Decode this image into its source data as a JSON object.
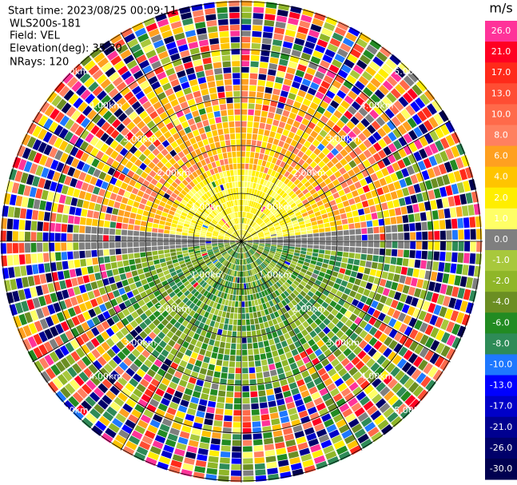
{
  "info": {
    "start_time": "Start time: 2023/08/25 00:09:11",
    "site": "WLS200s-181",
    "field": "Field: VEL",
    "elevation": "Elevation(deg): 35.30",
    "nrays": "NRays: 120"
  },
  "rings": [
    "1.00km",
    "2.00km",
    "3.00km",
    "4.00km",
    "5.00km"
  ],
  "colorbar": {
    "unit": "m/s",
    "ticks": [
      {
        "label": "26.0",
        "color": "#ff3399"
      },
      {
        "label": "21.0",
        "color": "#ff0022"
      },
      {
        "label": "17.0",
        "color": "#ff2a1a"
      },
      {
        "label": "13.0",
        "color": "#ff4d33"
      },
      {
        "label": "10.0",
        "color": "#ff6a4a"
      },
      {
        "label": "8.0",
        "color": "#ff8060"
      },
      {
        "label": "6.0",
        "color": "#ffa020"
      },
      {
        "label": "4.0",
        "color": "#ffc400"
      },
      {
        "label": "2.0",
        "color": "#ffee00"
      },
      {
        "label": "1.0",
        "color": "#ffff66"
      },
      {
        "label": "0.0",
        "color": "#7f7f7f"
      },
      {
        "label": "-1.0",
        "color": "#a8c83c"
      },
      {
        "label": "-2.0",
        "color": "#8fb628"
      },
      {
        "label": "-4.0",
        "color": "#6b8e23"
      },
      {
        "label": "-6.0",
        "color": "#228b22"
      },
      {
        "label": "-8.0",
        "color": "#2e8b57"
      },
      {
        "label": "-10.0",
        "color": "#1e78ff"
      },
      {
        "label": "-13.0",
        "color": "#0000ff"
      },
      {
        "label": "-17.0",
        "color": "#0000c8"
      },
      {
        "label": "-21.0",
        "color": "#000090"
      },
      {
        "label": "-26.0",
        "color": "#00006a"
      },
      {
        "label": "-30.0",
        "color": "#000050"
      }
    ]
  }
}
